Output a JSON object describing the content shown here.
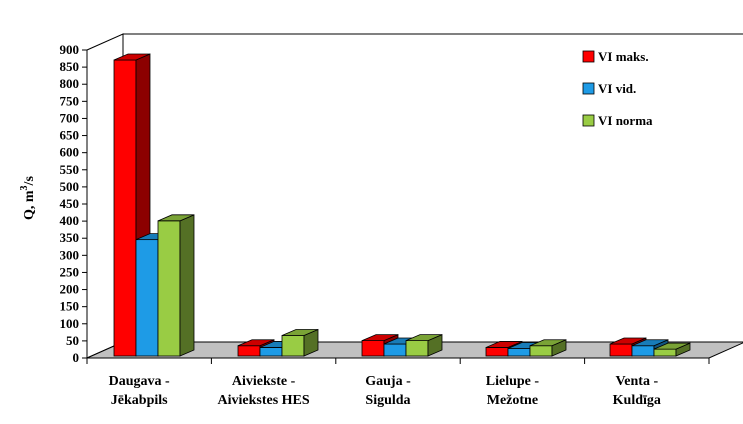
{
  "chart_data": {
    "type": "bar",
    "title": "",
    "xlabel": "",
    "ylabel": {
      "base": "Q, m",
      "sup": "3",
      "tail": "/s"
    },
    "categories": [
      [
        "Daugava -",
        "Jēkabpils"
      ],
      [
        "Aiviekste -",
        "Aiviekstes HES"
      ],
      [
        "Gauja -",
        "Sigulda"
      ],
      [
        "Lielupe -",
        "Mežotne"
      ],
      [
        "Venta -",
        "Kuldīga"
      ]
    ],
    "series": [
      {
        "name": "VI maks.",
        "color": "#ff0000",
        "values": [
          865,
          30,
          45,
          25,
          35
        ]
      },
      {
        "name": "VI vid.",
        "color": "#1e9be6",
        "values": [
          340,
          25,
          35,
          22,
          30
        ]
      },
      {
        "name": "VI norma",
        "color": "#99cc44",
        "values": [
          395,
          60,
          45,
          30,
          20
        ]
      }
    ],
    "ylim": [
      0,
      900
    ],
    "yticks": [
      "0",
      "50",
      "100",
      "150",
      "200",
      "250",
      "300",
      "350",
      "400",
      "450",
      "500",
      "550",
      "600",
      "650",
      "700",
      "750",
      "800",
      "850",
      "900"
    ],
    "grid": false,
    "legend_position": "top-right"
  }
}
